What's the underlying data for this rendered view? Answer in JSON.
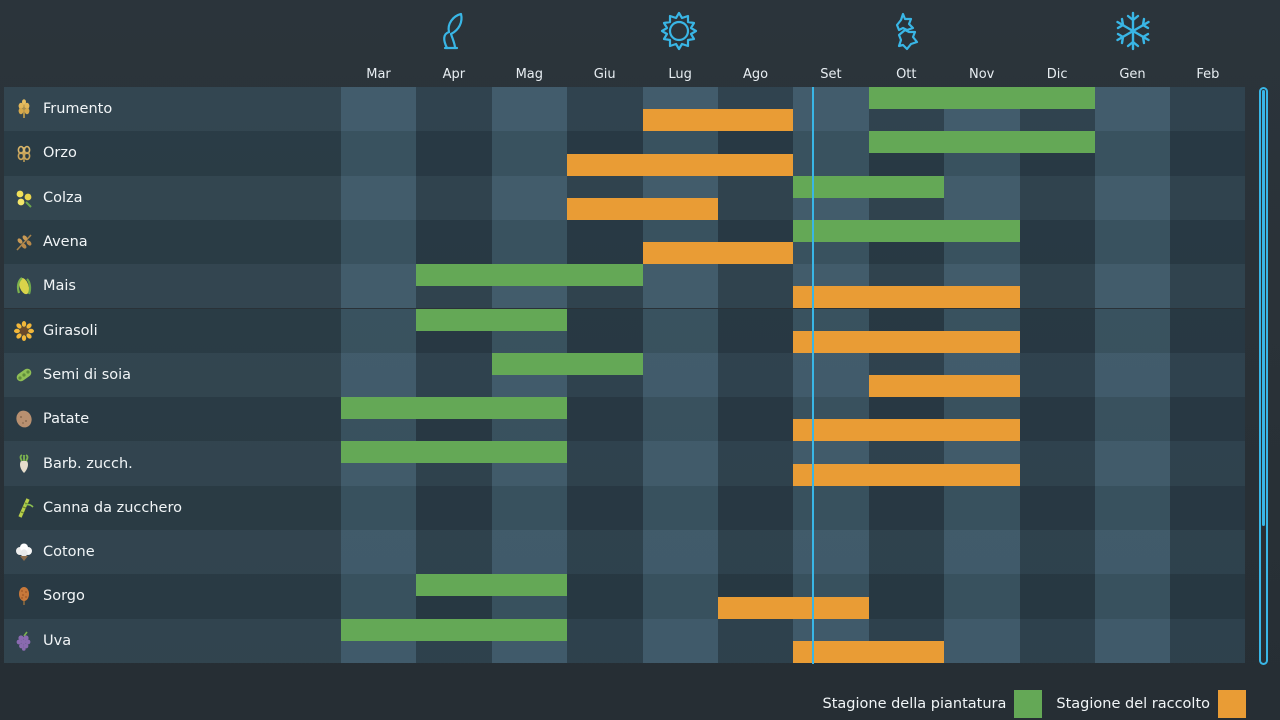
{
  "months": [
    "Mar",
    "Apr",
    "Mag",
    "Giu",
    "Lug",
    "Ago",
    "Set",
    "Ott",
    "Nov",
    "Dic",
    "Gen",
    "Feb"
  ],
  "season_icons": [
    {
      "name": "spring-sprout-icon"
    },
    {
      "name": "summer-sun-icon"
    },
    {
      "name": "autumn-leaves-icon"
    },
    {
      "name": "winter-snowflake-icon"
    }
  ],
  "colors": {
    "planting": "#64a856",
    "harvest": "#e99c35",
    "accent": "#39b6e6"
  },
  "current_month_fraction": 6.25,
  "crops": [
    {
      "name": "Frumento",
      "icon": "wheat-icon",
      "plant": [
        [
          7,
          10
        ]
      ],
      "harvest": [
        [
          4,
          6
        ]
      ]
    },
    {
      "name": "Orzo",
      "icon": "barley-icon",
      "plant": [
        [
          7,
          10
        ]
      ],
      "harvest": [
        [
          3,
          6
        ]
      ]
    },
    {
      "name": "Colza",
      "icon": "canola-icon",
      "plant": [
        [
          6,
          8
        ]
      ],
      "harvest": [
        [
          3,
          5
        ]
      ]
    },
    {
      "name": "Avena",
      "icon": "oat-icon",
      "plant": [
        [
          6,
          9
        ]
      ],
      "harvest": [
        [
          4,
          6
        ]
      ]
    },
    {
      "name": "Mais",
      "icon": "corn-icon",
      "plant": [
        [
          1,
          4
        ]
      ],
      "harvest": [
        [
          6,
          9
        ]
      ]
    },
    {
      "name": "Girasoli",
      "icon": "sunflower-icon",
      "plant": [
        [
          1,
          3
        ]
      ],
      "harvest": [
        [
          6,
          9
        ]
      ]
    },
    {
      "name": "Semi di soia",
      "icon": "soybean-icon",
      "plant": [
        [
          2,
          4
        ]
      ],
      "harvest": [
        [
          7,
          9
        ]
      ]
    },
    {
      "name": "Patate",
      "icon": "potato-icon",
      "plant": [
        [
          0,
          3
        ]
      ],
      "harvest": [
        [
          6,
          9
        ]
      ]
    },
    {
      "name": "Barb. zucch.",
      "icon": "sugarbeet-icon",
      "plant": [
        [
          0,
          3
        ]
      ],
      "harvest": [
        [
          6,
          9
        ]
      ]
    },
    {
      "name": "Canna da zucchero",
      "icon": "sugarcane-icon",
      "plant": [],
      "harvest": []
    },
    {
      "name": "Cotone",
      "icon": "cotton-icon",
      "plant": [],
      "harvest": []
    },
    {
      "name": "Sorgo",
      "icon": "sorghum-icon",
      "plant": [
        [
          1,
          3
        ]
      ],
      "harvest": [
        [
          5,
          7
        ]
      ]
    },
    {
      "name": "Uva",
      "icon": "grape-icon",
      "plant": [
        [
          0,
          3
        ]
      ],
      "harvest": [
        [
          6,
          8
        ]
      ]
    }
  ],
  "legend": {
    "planting_label": "Stagione della piantatura",
    "harvest_label": "Stagione del raccolto"
  }
}
